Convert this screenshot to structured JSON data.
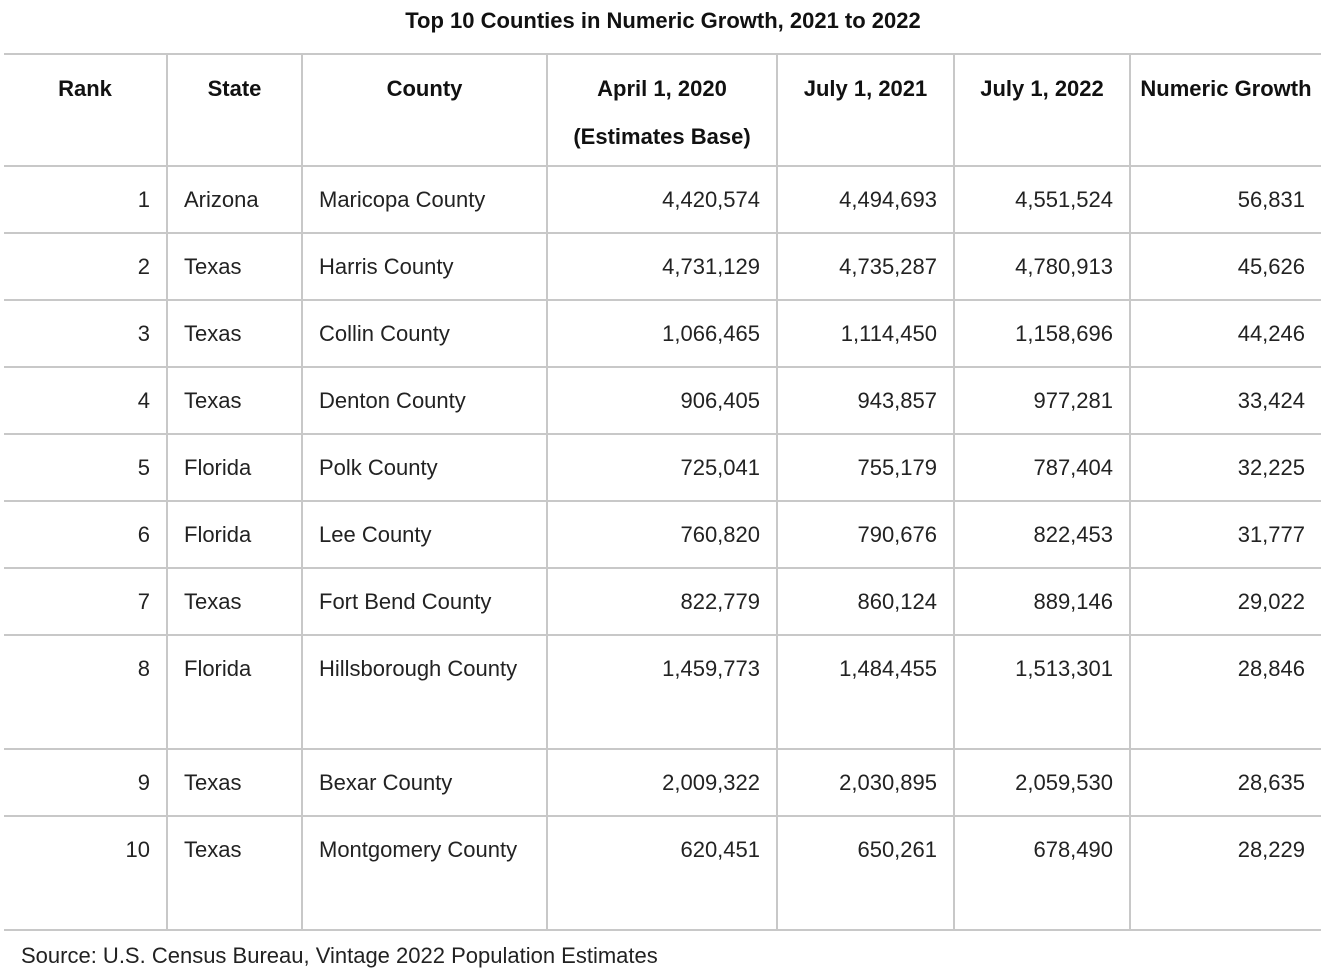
{
  "title": "Top 10 Counties in Numeric Growth, 2021 to 2022",
  "columns": [
    "Rank",
    "State",
    "County",
    "April 1, 2020 (Estimates Base)",
    "July 1, 2021",
    "July 1, 2022",
    "Numeric Growth"
  ],
  "rows": [
    [
      "1",
      "Arizona",
      "Maricopa County",
      "4,420,574",
      "4,494,693",
      "4,551,524",
      "56,831"
    ],
    [
      "2",
      "Texas",
      "Harris County",
      "4,731,129",
      "4,735,287",
      "4,780,913",
      "45,626"
    ],
    [
      "3",
      "Texas",
      "Collin County",
      "1,066,465",
      "1,114,450",
      "1,158,696",
      "44,246"
    ],
    [
      "4",
      "Texas",
      "Denton County",
      "906,405",
      "943,857",
      "977,281",
      "33,424"
    ],
    [
      "5",
      "Florida",
      "Polk County",
      "725,041",
      "755,179",
      "787,404",
      "32,225"
    ],
    [
      "6",
      "Florida",
      "Lee County",
      "760,820",
      "790,676",
      "822,453",
      "31,777"
    ],
    [
      "7",
      "Texas",
      "Fort Bend County",
      "822,779",
      "860,124",
      "889,146",
      "29,022"
    ],
    [
      "8",
      "Florida",
      "Hillsborough County",
      "1,459,773",
      "1,484,455",
      "1,513,301",
      "28,846"
    ],
    [
      "9",
      "Texas",
      "Bexar County",
      "2,009,322",
      "2,030,895",
      "2,059,530",
      "28,635"
    ],
    [
      "10",
      "Texas",
      "Montgomery County",
      "620,451",
      "650,261",
      "678,490",
      "28,229"
    ]
  ],
  "source": "Source: U.S. Census Bureau, Vintage 2022 Population Estimates"
}
